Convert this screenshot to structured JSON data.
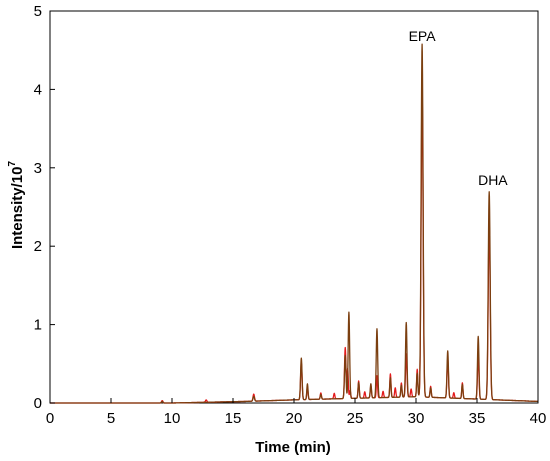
{
  "chart_data": {
    "type": "line",
    "title": "",
    "xlabel": "Time (min)",
    "ylabel_base": "Intensity/10",
    "ylabel_exp": "7",
    "xlim": [
      0,
      40
    ],
    "ylim": [
      0,
      5
    ],
    "xticks": [
      0,
      5,
      10,
      15,
      20,
      25,
      30,
      35,
      40
    ],
    "yticks": [
      0,
      1,
      2,
      3,
      4,
      5
    ],
    "grid": false,
    "baseline": [
      [
        0,
        0.0
      ],
      [
        10,
        0.0
      ],
      [
        16,
        0.02
      ],
      [
        20,
        0.04
      ],
      [
        25,
        0.06
      ],
      [
        30,
        0.08
      ],
      [
        35,
        0.05
      ],
      [
        40,
        0.02
      ]
    ],
    "series": [
      {
        "color": "#e31a1c",
        "peaks": [
          {
            "x": 9.2,
            "y": 0.03,
            "w": 0.06
          },
          {
            "x": 12.8,
            "y": 0.03,
            "w": 0.06
          },
          {
            "x": 16.7,
            "y": 0.09,
            "w": 0.06
          },
          {
            "x": 20.6,
            "y": 0.47,
            "w": 0.06
          },
          {
            "x": 21.1,
            "y": 0.16,
            "w": 0.05
          },
          {
            "x": 22.2,
            "y": 0.08,
            "w": 0.05
          },
          {
            "x": 23.3,
            "y": 0.07,
            "w": 0.05
          },
          {
            "x": 24.2,
            "y": 0.65,
            "w": 0.06
          },
          {
            "x": 24.4,
            "y": 0.38,
            "w": 0.05
          },
          {
            "x": 24.6,
            "y": 0.1,
            "w": 0.05
          },
          {
            "x": 25.3,
            "y": 0.22,
            "w": 0.05
          },
          {
            "x": 25.8,
            "y": 0.08,
            "w": 0.05
          },
          {
            "x": 26.3,
            "y": 0.15,
            "w": 0.05
          },
          {
            "x": 26.8,
            "y": 0.28,
            "w": 0.05
          },
          {
            "x": 27.3,
            "y": 0.08,
            "w": 0.05
          },
          {
            "x": 27.9,
            "y": 0.3,
            "w": 0.05
          },
          {
            "x": 28.3,
            "y": 0.12,
            "w": 0.05
          },
          {
            "x": 28.8,
            "y": 0.18,
            "w": 0.05
          },
          {
            "x": 29.2,
            "y": 0.55,
            "w": 0.06
          },
          {
            "x": 29.6,
            "y": 0.1,
            "w": 0.05
          },
          {
            "x": 30.1,
            "y": 0.35,
            "w": 0.05
          },
          {
            "x": 30.5,
            "y": 3.9,
            "w": 0.08
          },
          {
            "x": 31.2,
            "y": 0.14,
            "w": 0.05
          },
          {
            "x": 32.6,
            "y": 0.5,
            "w": 0.06
          },
          {
            "x": 33.1,
            "y": 0.07,
            "w": 0.05
          },
          {
            "x": 33.8,
            "y": 0.2,
            "w": 0.05
          },
          {
            "x": 35.1,
            "y": 0.55,
            "w": 0.06
          },
          {
            "x": 36.0,
            "y": 2.25,
            "w": 0.08
          }
        ]
      },
      {
        "color": "#7b3f10",
        "peaks": [
          {
            "x": 9.2,
            "y": 0.02,
            "w": 0.06
          },
          {
            "x": 16.7,
            "y": 0.06,
            "w": 0.06
          },
          {
            "x": 20.6,
            "y": 0.53,
            "w": 0.06
          },
          {
            "x": 21.1,
            "y": 0.2,
            "w": 0.05
          },
          {
            "x": 22.2,
            "y": 0.06,
            "w": 0.05
          },
          {
            "x": 24.2,
            "y": 0.55,
            "w": 0.06
          },
          {
            "x": 24.5,
            "y": 1.1,
            "w": 0.06
          },
          {
            "x": 25.3,
            "y": 0.2,
            "w": 0.05
          },
          {
            "x": 26.3,
            "y": 0.18,
            "w": 0.05
          },
          {
            "x": 26.8,
            "y": 0.88,
            "w": 0.06
          },
          {
            "x": 27.9,
            "y": 0.25,
            "w": 0.05
          },
          {
            "x": 28.8,
            "y": 0.15,
            "w": 0.05
          },
          {
            "x": 29.2,
            "y": 0.95,
            "w": 0.06
          },
          {
            "x": 30.1,
            "y": 0.3,
            "w": 0.05
          },
          {
            "x": 30.5,
            "y": 4.5,
            "w": 0.08
          },
          {
            "x": 31.2,
            "y": 0.12,
            "w": 0.05
          },
          {
            "x": 32.6,
            "y": 0.6,
            "w": 0.06
          },
          {
            "x": 33.8,
            "y": 0.18,
            "w": 0.05
          },
          {
            "x": 35.1,
            "y": 0.8,
            "w": 0.06
          },
          {
            "x": 36.0,
            "y": 2.65,
            "w": 0.08
          }
        ]
      }
    ],
    "annotations": [
      {
        "text": "EPA",
        "x": 30.5,
        "y": 4.62
      },
      {
        "text": "DHA",
        "x": 36.3,
        "y": 2.78
      }
    ]
  }
}
